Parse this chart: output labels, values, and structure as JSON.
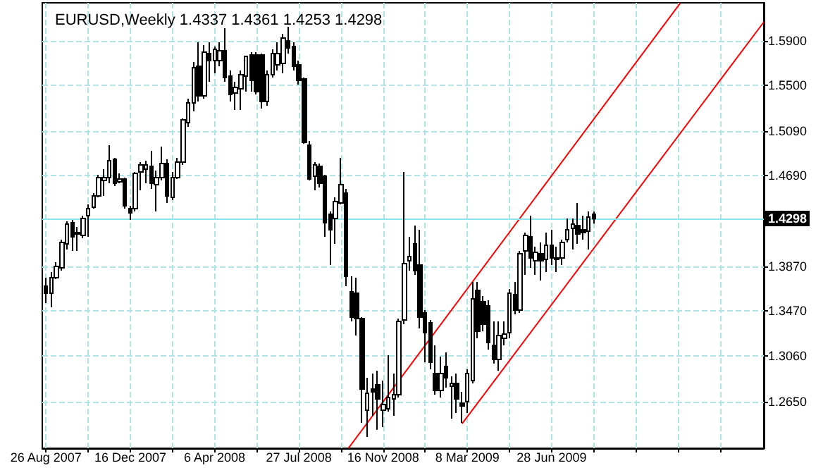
{
  "chart_data": {
    "type": "candlestick",
    "title": "EURUSD,Weekly 1.4337 1.4361 1.4253 1.4298",
    "x": [
      "2007-08-26",
      "2007-09-02",
      "2007-09-09",
      "2007-09-16",
      "2007-09-23",
      "2007-09-30",
      "2007-10-07",
      "2007-10-14",
      "2007-10-21",
      "2007-10-28",
      "2007-11-04",
      "2007-11-11",
      "2007-11-18",
      "2007-11-25",
      "2007-12-02",
      "2007-12-09",
      "2007-12-16",
      "2007-12-23",
      "2007-12-30",
      "2008-01-06",
      "2008-01-13",
      "2008-01-20",
      "2008-01-27",
      "2008-02-03",
      "2008-02-10",
      "2008-02-17",
      "2008-02-24",
      "2008-03-02",
      "2008-03-09",
      "2008-03-16",
      "2008-03-23",
      "2008-03-30",
      "2008-04-06",
      "2008-04-13",
      "2008-04-20",
      "2008-04-27",
      "2008-05-04",
      "2008-05-11",
      "2008-05-18",
      "2008-05-25",
      "2008-06-01",
      "2008-06-08",
      "2008-06-15",
      "2008-06-22",
      "2008-06-29",
      "2008-07-06",
      "2008-07-13",
      "2008-07-20",
      "2008-07-27",
      "2008-08-03",
      "2008-08-10",
      "2008-08-17",
      "2008-08-24",
      "2008-08-31",
      "2008-09-07",
      "2008-09-14",
      "2008-09-21",
      "2008-09-28",
      "2008-10-05",
      "2008-10-12",
      "2008-10-19",
      "2008-10-26",
      "2008-11-02",
      "2008-11-09",
      "2008-11-16",
      "2008-11-23",
      "2008-11-30",
      "2008-12-07",
      "2008-12-14",
      "2008-12-21",
      "2008-12-28",
      "2009-01-04",
      "2009-01-11",
      "2009-01-18",
      "2009-01-25",
      "2009-02-01",
      "2009-02-08",
      "2009-02-15",
      "2009-02-22",
      "2009-03-01",
      "2009-03-08",
      "2009-03-15",
      "2009-03-22",
      "2009-03-29",
      "2009-04-05",
      "2009-04-12",
      "2009-04-19",
      "2009-04-26",
      "2009-05-03",
      "2009-05-10",
      "2009-05-17",
      "2009-05-24",
      "2009-05-31",
      "2009-06-07",
      "2009-06-14",
      "2009-06-21",
      "2009-06-28",
      "2009-07-05",
      "2009-07-12",
      "2009-07-19",
      "2009-07-26",
      "2009-08-02",
      "2009-08-09",
      "2009-08-16",
      "2009-08-23"
    ],
    "ohlc": [
      [
        1.369,
        1.3766,
        1.3538,
        1.3626
      ],
      [
        1.3626,
        1.3817,
        1.3499,
        1.3766
      ],
      [
        1.3766,
        1.3906,
        1.3753,
        1.3868
      ],
      [
        1.3855,
        1.4109,
        1.383,
        1.4084
      ],
      [
        1.4071,
        1.4274,
        1.402,
        1.4249
      ],
      [
        1.4261,
        1.4287,
        1.4007,
        1.4134
      ],
      [
        1.416,
        1.4223,
        1.4007,
        1.4173
      ],
      [
        1.4147,
        1.4325,
        1.4122,
        1.43
      ],
      [
        1.4325,
        1.4427,
        1.4134,
        1.4388
      ],
      [
        1.4401,
        1.4528,
        1.4388,
        1.4503
      ],
      [
        1.4503,
        1.4693,
        1.449,
        1.4668
      ],
      [
        1.4642,
        1.4744,
        1.4503,
        1.4668
      ],
      [
        1.4668,
        1.496,
        1.4617,
        1.482
      ],
      [
        1.4833,
        1.4846,
        1.4592,
        1.4617
      ],
      [
        1.463,
        1.4706,
        1.4617,
        1.4655
      ],
      [
        1.4655,
        1.4668,
        1.4388,
        1.4414
      ],
      [
        1.4388,
        1.4414,
        1.4287,
        1.435
      ],
      [
        1.4388,
        1.4719,
        1.4363,
        1.4706
      ],
      [
        1.4719,
        1.4808,
        1.4553,
        1.4782
      ],
      [
        1.4744,
        1.482,
        1.4617,
        1.4782
      ],
      [
        1.4769,
        1.4909,
        1.4566,
        1.4617
      ],
      [
        1.4604,
        1.4731,
        1.4363,
        1.4668
      ],
      [
        1.4668,
        1.4947,
        1.4642,
        1.4795
      ],
      [
        1.4795,
        1.4833,
        1.4439,
        1.4503
      ],
      [
        1.449,
        1.4719,
        1.4465,
        1.4668
      ],
      [
        1.4668,
        1.4846,
        1.4655,
        1.4808
      ],
      [
        1.4808,
        1.5201,
        1.4782,
        1.5189
      ],
      [
        1.5163,
        1.5379,
        1.5125,
        1.5341
      ],
      [
        1.5341,
        1.5709,
        1.5265,
        1.5658
      ],
      [
        1.5671,
        1.5887,
        1.5354,
        1.5404
      ],
      [
        1.5404,
        1.5862,
        1.5379,
        1.5798
      ],
      [
        1.5785,
        1.5887,
        1.5531,
        1.5722
      ],
      [
        1.5722,
        1.5849,
        1.5608,
        1.5824
      ],
      [
        1.5722,
        1.5887,
        1.5671,
        1.5811
      ],
      [
        1.5811,
        1.6014,
        1.5531,
        1.557
      ],
      [
        1.5582,
        1.5633,
        1.5354,
        1.5417
      ],
      [
        1.543,
        1.5531,
        1.5278,
        1.5481
      ],
      [
        1.5468,
        1.5633,
        1.5278,
        1.5595
      ],
      [
        1.5582,
        1.576,
        1.5443,
        1.576
      ],
      [
        1.5773,
        1.5798,
        1.5443,
        1.5544
      ],
      [
        1.5773,
        1.5798,
        1.5417,
        1.5443
      ],
      [
        1.5773,
        1.5785,
        1.529,
        1.5354
      ],
      [
        1.5354,
        1.5633,
        1.5316,
        1.5595
      ],
      [
        1.5595,
        1.5824,
        1.557,
        1.5785
      ],
      [
        1.5684,
        1.5887,
        1.5633,
        1.5785
      ],
      [
        1.5697,
        1.5963,
        1.5608,
        1.5925
      ],
      [
        1.59,
        1.6027,
        1.5785,
        1.5836
      ],
      [
        1.5849,
        1.5887,
        1.5633,
        1.5671
      ],
      [
        1.5684,
        1.5722,
        1.5506,
        1.5544
      ],
      [
        1.5557,
        1.557,
        1.4973,
        1.4985
      ],
      [
        1.496,
        1.4998,
        1.4642,
        1.4655
      ],
      [
        1.468,
        1.4808,
        1.4553,
        1.4782
      ],
      [
        1.4769,
        1.4795,
        1.4579,
        1.4617
      ],
      [
        1.468,
        1.4693,
        1.4134,
        1.4261
      ],
      [
        1.4338,
        1.4363,
        1.388,
        1.4198
      ],
      [
        1.43,
        1.449,
        1.4071,
        1.4452
      ],
      [
        1.4439,
        1.4846,
        1.4427,
        1.4604
      ],
      [
        1.4528,
        1.4566,
        1.369,
        1.3779
      ],
      [
        1.3639,
        1.3779,
        1.3372,
        1.3411
      ],
      [
        1.3626,
        1.3766,
        1.3245,
        1.3398
      ],
      [
        1.3398,
        1.3411,
        1.2458,
        1.2763
      ],
      [
        1.2572,
        1.2864,
        1.2331,
        1.2725
      ],
      [
        1.2763,
        1.2903,
        1.2521,
        1.2737
      ],
      [
        1.2801,
        1.2928,
        1.2395,
        1.2674
      ],
      [
        1.2572,
        1.2839,
        1.242,
        1.2623
      ],
      [
        1.2585,
        1.3068,
        1.256,
        1.2687
      ],
      [
        1.2674,
        1.2903,
        1.2521,
        1.2712
      ],
      [
        1.2712,
        1.3398,
        1.2687,
        1.3372
      ],
      [
        1.3385,
        1.4719,
        1.3347,
        1.3893
      ],
      [
        1.3919,
        1.4134,
        1.383,
        1.3957
      ],
      [
        1.4071,
        1.4236,
        1.3792,
        1.383
      ],
      [
        1.388,
        1.4198,
        1.3309,
        1.3411
      ],
      [
        1.3449,
        1.3474,
        1.3004,
        1.3271
      ],
      [
        1.336,
        1.3385,
        1.2941,
        1.3004
      ],
      [
        1.2903,
        1.3157,
        1.2712,
        1.275
      ],
      [
        1.275,
        1.3055,
        1.2687,
        1.2903
      ],
      [
        1.2966,
        1.3093,
        1.2775,
        1.2864
      ],
      [
        1.2788,
        1.2877,
        1.2496,
        1.2814
      ],
      [
        1.2814,
        1.2903,
        1.2547,
        1.2674
      ],
      [
        1.2636,
        1.2737,
        1.2458,
        1.261
      ],
      [
        1.2649,
        1.2941,
        1.2547,
        1.2903
      ],
      [
        1.2839,
        1.3728,
        1.2814,
        1.3576
      ],
      [
        1.3652,
        1.3728,
        1.322,
        1.3283
      ],
      [
        1.355,
        1.3601,
        1.3283,
        1.3347
      ],
      [
        1.3512,
        1.3563,
        1.3118,
        1.3182
      ],
      [
        1.3157,
        1.3372,
        1.2992,
        1.303
      ],
      [
        1.303,
        1.3372,
        1.2928,
        1.3245
      ],
      [
        1.322,
        1.3372,
        1.3157,
        1.3258
      ],
      [
        1.3271,
        1.3665,
        1.322,
        1.3626
      ],
      [
        1.3614,
        1.3728,
        1.3436,
        1.3474
      ],
      [
        1.3474,
        1.4007,
        1.3449,
        1.3982
      ],
      [
        1.4007,
        1.4173,
        1.3792,
        1.4147
      ],
      [
        1.4134,
        1.4325,
        1.3855,
        1.3944
      ],
      [
        1.3919,
        1.4046,
        1.3792,
        1.3995
      ],
      [
        1.3982,
        1.4084,
        1.3741,
        1.3919
      ],
      [
        1.3931,
        1.4173,
        1.3817,
        1.4058
      ],
      [
        1.4058,
        1.4198,
        1.388,
        1.3944
      ],
      [
        1.3931,
        1.4046,
        1.3817,
        1.3944
      ],
      [
        1.3944,
        1.4109,
        1.388,
        1.4084
      ],
      [
        1.4109,
        1.43,
        1.4084,
        1.4198
      ],
      [
        1.4211,
        1.43,
        1.402,
        1.4249
      ],
      [
        1.4236,
        1.4439,
        1.4071,
        1.416
      ],
      [
        1.4198,
        1.4325,
        1.4109,
        1.4173
      ],
      [
        1.4185,
        1.4363,
        1.402,
        1.4312
      ],
      [
        1.4337,
        1.4361,
        1.4253,
        1.4298
      ]
    ],
    "series": [
      {
        "type": "line",
        "color": "#ff0000",
        "x": [
          "2008-10-01",
          "2009-12-16"
        ],
        "values": [
          1.223,
          1.624
        ]
      },
      {
        "type": "line",
        "color": "#ff0000",
        "x": [
          "2009-03-01",
          "2010-04-06"
        ],
        "values": [
          1.245,
          1.607
        ]
      }
    ],
    "xlim": [
      "2007-08-21",
      "2010-04-06"
    ],
    "ylim": [
      1.2229,
      1.6243
    ],
    "xticks": [
      {
        "value": "2007-08-26",
        "label": "26 Aug 2007"
      },
      {
        "value": "2007-10-21",
        "label": null
      },
      {
        "value": "2007-12-16",
        "label": "16 Dec 2007"
      },
      {
        "value": "2008-02-10",
        "label": null
      },
      {
        "value": "2008-04-06",
        "label": "6 Apr 2008"
      },
      {
        "value": "2008-06-01",
        "label": null
      },
      {
        "value": "2008-07-27",
        "label": "27 Jul 2008"
      },
      {
        "value": "2008-09-21",
        "label": null
      },
      {
        "value": "2008-11-16",
        "label": "16 Nov 2008"
      },
      {
        "value": "2009-01-11",
        "label": null
      },
      {
        "value": "2009-03-08",
        "label": "8 Mar 2009"
      },
      {
        "value": "2009-05-03",
        "label": null
      },
      {
        "value": "2009-06-28",
        "label": "28 Jun 2009"
      },
      {
        "value": "2009-08-23",
        "label": null
      },
      {
        "value": "2009-10-18",
        "label": null
      },
      {
        "value": "2009-12-13",
        "label": null
      },
      {
        "value": "2010-02-07",
        "label": null
      }
    ],
    "yticks": [
      {
        "value": 1.265,
        "label": "1.2650"
      },
      {
        "value": 1.306,
        "label": "1.3060"
      },
      {
        "value": 1.347,
        "label": "1.3470"
      },
      {
        "value": 1.387,
        "label": "1.3870"
      },
      {
        "value": 1.469,
        "label": "1.4690"
      },
      {
        "value": 1.509,
        "label": "1.5090"
      },
      {
        "value": 1.55,
        "label": "1.5500"
      },
      {
        "value": 1.59,
        "label": "1.5900"
      }
    ],
    "ref_lines": [
      {
        "axis": "y",
        "value": 1.4298,
        "label": "1.4298",
        "color": "#8fe3ea"
      }
    ],
    "grid": true,
    "marker": "none",
    "line_style": "solid"
  }
}
